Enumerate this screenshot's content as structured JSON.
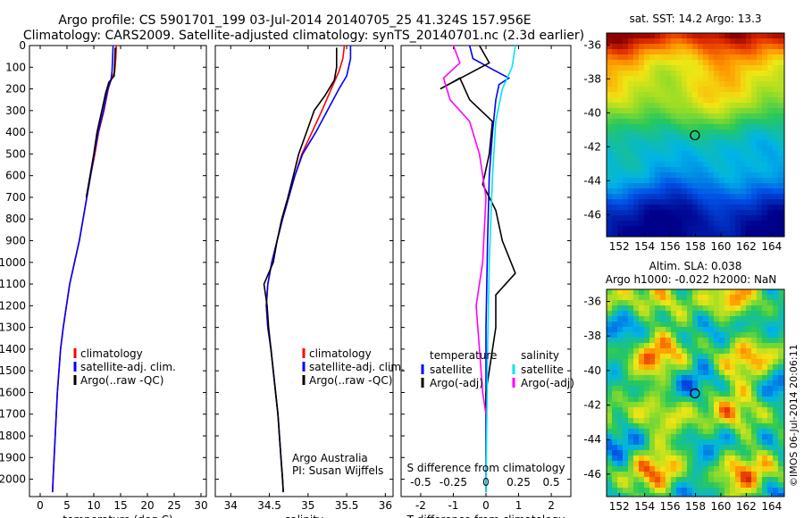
{
  "header": {
    "line1": "Argo profile: CS 5901701_199 03-Jul-2014 20140705_25 41.324S 157.956E",
    "line2": "Climatology: CARS2009. Satellite-adjusted climatology: synTS_20140701.nc (2.3d earlier)"
  },
  "colors": {
    "climatology": "#ff0000",
    "satellite": "#0000ff",
    "argo": "#000000",
    "satellite_s": "#00e5ee",
    "argo_s": "#ff00ff"
  },
  "chart_data": [
    {
      "type": "line",
      "id": "temperature",
      "xlabel": "temperature (deg C)",
      "ylabel": "",
      "xlim": [
        -2,
        31
      ],
      "ylim": [
        2080,
        0
      ],
      "xticks": [
        0,
        5,
        10,
        15,
        20,
        25,
        30
      ],
      "yticks": [
        0,
        100,
        200,
        300,
        400,
        500,
        600,
        700,
        800,
        900,
        1000,
        1100,
        1200,
        1300,
        1400,
        1500,
        1600,
        1700,
        1800,
        1900,
        2000
      ],
      "legend": [
        "climatology",
        "satellite-adj. clim.",
        "Argo(..raw -QC)"
      ],
      "legend_position": "lower-center",
      "series": [
        {
          "name": "climatology",
          "points": [
            [
              14.2,
              0
            ],
            [
              14.1,
              60
            ],
            [
              13.9,
              120
            ],
            [
              13.2,
              160
            ],
            [
              12.7,
              200
            ],
            [
              11.9,
              300
            ],
            [
              10.9,
              400
            ],
            [
              10.2,
              500
            ],
            [
              9.4,
              600
            ],
            [
              8.7,
              700
            ],
            [
              8.0,
              800
            ],
            [
              7.3,
              900
            ],
            [
              6.4,
              1000
            ],
            [
              5.5,
              1100
            ],
            [
              4.9,
              1200
            ],
            [
              4.3,
              1300
            ],
            [
              3.8,
              1400
            ],
            [
              3.5,
              1500
            ],
            [
              3.2,
              1600
            ],
            [
              3.0,
              1700
            ],
            [
              2.8,
              1800
            ],
            [
              2.6,
              1900
            ],
            [
              2.4,
              2000
            ],
            [
              2.3,
              2060
            ]
          ]
        },
        {
          "name": "satellite-adj. clim.",
          "points": [
            [
              13.6,
              0
            ],
            [
              13.5,
              60
            ],
            [
              13.4,
              120
            ],
            [
              13.2,
              160
            ],
            [
              12.6,
              200
            ],
            [
              11.8,
              300
            ],
            [
              10.8,
              400
            ],
            [
              10.1,
              500
            ],
            [
              9.4,
              600
            ],
            [
              8.7,
              700
            ],
            [
              8.0,
              800
            ],
            [
              7.3,
              900
            ],
            [
              6.4,
              1000
            ],
            [
              5.5,
              1100
            ],
            [
              4.9,
              1200
            ],
            [
              4.3,
              1300
            ],
            [
              3.8,
              1400
            ],
            [
              3.5,
              1500
            ],
            [
              3.2,
              1600
            ],
            [
              3.0,
              1700
            ],
            [
              2.8,
              1800
            ],
            [
              2.6,
              1900
            ],
            [
              2.4,
              2000
            ],
            [
              2.3,
              2060
            ]
          ]
        },
        {
          "name": "Argo(..raw -QC)",
          "points": [
            [
              14.0,
              10
            ],
            [
              13.9,
              80
            ],
            [
              13.8,
              140
            ],
            [
              12.8,
              170
            ],
            [
              12.2,
              220
            ],
            [
              11.5,
              300
            ],
            [
              10.6,
              400
            ],
            [
              10.0,
              500
            ],
            [
              9.3,
              600
            ],
            [
              8.6,
              700
            ]
          ]
        }
      ]
    },
    {
      "type": "line",
      "id": "salinity",
      "xlabel": "salinity",
      "ylabel": "",
      "xlim": [
        33.8,
        36.1
      ],
      "ylim": [
        2080,
        0
      ],
      "xticks": [
        34,
        34.5,
        35,
        35.5,
        36
      ],
      "xticklabels": [
        "34",
        "34.5",
        "35",
        "35.5",
        "36"
      ],
      "legend": [
        "climatology",
        "satellite-adj. clim.",
        "Argo(..raw -QC)"
      ],
      "legend_position": "lower-right",
      "annotation": [
        "Argo Australia",
        "PI: Susan Wijffels"
      ],
      "series": [
        {
          "name": "climatology",
          "points": [
            [
              35.47,
              0
            ],
            [
              35.45,
              60
            ],
            [
              35.4,
              120
            ],
            [
              35.3,
              200
            ],
            [
              35.18,
              300
            ],
            [
              35.05,
              400
            ],
            [
              34.92,
              500
            ],
            [
              34.83,
              600
            ],
            [
              34.75,
              700
            ],
            [
              34.67,
              800
            ],
            [
              34.6,
              900
            ],
            [
              34.53,
              1000
            ],
            [
              34.48,
              1100
            ],
            [
              34.46,
              1200
            ],
            [
              34.48,
              1300
            ],
            [
              34.52,
              1400
            ],
            [
              34.55,
              1500
            ],
            [
              34.58,
              1600
            ],
            [
              34.61,
              1700
            ],
            [
              34.63,
              1800
            ],
            [
              34.65,
              1900
            ],
            [
              34.67,
              2000
            ],
            [
              34.68,
              2060
            ]
          ]
        },
        {
          "name": "satellite-adj. clim.",
          "points": [
            [
              35.55,
              0
            ],
            [
              35.55,
              60
            ],
            [
              35.5,
              140
            ],
            [
              35.4,
              200
            ],
            [
              35.25,
              300
            ],
            [
              35.1,
              400
            ],
            [
              34.93,
              500
            ],
            [
              34.83,
              600
            ],
            [
              34.75,
              700
            ],
            [
              34.67,
              800
            ],
            [
              34.6,
              900
            ],
            [
              34.53,
              1000
            ],
            [
              34.48,
              1100
            ],
            [
              34.46,
              1200
            ],
            [
              34.48,
              1300
            ],
            [
              34.52,
              1400
            ],
            [
              34.55,
              1500
            ],
            [
              34.58,
              1600
            ],
            [
              34.61,
              1700
            ],
            [
              34.63,
              1800
            ],
            [
              34.65,
              1900
            ],
            [
              34.67,
              2000
            ],
            [
              34.68,
              2060
            ]
          ]
        },
        {
          "name": "Argo(..raw -QC)",
          "points": [
            [
              35.37,
              10
            ],
            [
              35.37,
              100
            ],
            [
              35.34,
              160
            ],
            [
              35.22,
              230
            ],
            [
              35.08,
              300
            ],
            [
              34.98,
              400
            ],
            [
              34.88,
              500
            ],
            [
              34.81,
              600
            ],
            [
              34.74,
              700
            ],
            [
              34.66,
              800
            ],
            [
              34.6,
              900
            ],
            [
              34.55,
              1000
            ],
            [
              34.43,
              1100
            ],
            [
              34.47,
              1200
            ],
            [
              34.49,
              1300
            ],
            [
              34.52,
              1400
            ],
            [
              34.55,
              1500
            ],
            [
              34.58,
              1600
            ],
            [
              34.61,
              1700
            ],
            [
              34.63,
              1800
            ],
            [
              34.65,
              1900
            ],
            [
              34.67,
              2000
            ],
            [
              34.68,
              2060
            ]
          ]
        }
      ]
    },
    {
      "type": "line",
      "id": "difference",
      "xlabel": "T difference from climatology",
      "xlabel2": "S difference from climatology",
      "xlim": [
        -2.6,
        2.6
      ],
      "ylim": [
        2080,
        0
      ],
      "xticks": [
        -2,
        -1,
        0,
        1,
        2
      ],
      "xticklabels": [
        "-2",
        "-1",
        "0",
        "1",
        "2"
      ],
      "s_ticklabels": [
        "-0.5",
        "-0.25",
        "0",
        "0.25",
        "0.5"
      ],
      "legend_headers": [
        "temperature",
        "salinity"
      ],
      "legend": [
        "satellite",
        "Argo(-adj)",
        "satellite",
        "Argo(-adj)"
      ],
      "legend_position": "lower-center",
      "series": [
        {
          "name": "satellite",
          "points": [
            [
              -0.5,
              0
            ],
            [
              -0.4,
              60
            ],
            [
              0.2,
              110
            ],
            [
              0.7,
              150
            ],
            [
              0.4,
              180
            ],
            [
              0.3,
              250
            ],
            [
              0.2,
              400
            ],
            [
              0.1,
              600
            ],
            [
              0.05,
              900
            ],
            [
              0.0,
              1300
            ],
            [
              0.0,
              2060
            ]
          ]
        },
        {
          "name": "Argo(-adj)",
          "points": [
            [
              -0.2,
              0
            ],
            [
              0.1,
              80
            ],
            [
              -1.4,
              200
            ],
            [
              -0.8,
              150
            ],
            [
              -0.5,
              250
            ],
            [
              0.2,
              350
            ],
            [
              0.1,
              500
            ],
            [
              -0.1,
              640
            ],
            [
              0.3,
              760
            ],
            [
              0.5,
              900
            ],
            [
              0.9,
              1050
            ],
            [
              0.3,
              1150
            ],
            [
              0.3,
              1300
            ],
            [
              0.0,
              1600
            ],
            [
              0.0,
              1700
            ]
          ]
        },
        {
          "name": "satellite",
          "points": [
            [
              0.9,
              0
            ],
            [
              0.8,
              100
            ],
            [
              0.5,
              200
            ],
            [
              0.3,
              350
            ],
            [
              0.2,
              600
            ],
            [
              0.1,
              1000
            ],
            [
              0.05,
              1400
            ],
            [
              0.0,
              2060
            ]
          ]
        },
        {
          "name": "Argo(-adj)",
          "points": [
            [
              -1.0,
              0
            ],
            [
              -0.8,
              80
            ],
            [
              -1.3,
              150
            ],
            [
              -1.1,
              250
            ],
            [
              -0.5,
              350
            ],
            [
              -0.2,
              500
            ],
            [
              0.0,
              700
            ],
            [
              -0.1,
              1000
            ],
            [
              -0.3,
              1200
            ],
            [
              -0.2,
              1400
            ],
            [
              -0.1,
              1600
            ],
            [
              0.0,
              1700
            ]
          ]
        }
      ]
    },
    {
      "type": "heatmap",
      "id": "sst-map",
      "title": "sat. SST: 14.2  Argo: 13.3",
      "xticklabels": [
        "152",
        "154",
        "156",
        "158",
        "160",
        "162",
        "164"
      ],
      "yticklabels": [
        "-36",
        "-38",
        "-40",
        "-42",
        "-44",
        "-46"
      ],
      "xlim": [
        151,
        165
      ],
      "ylim": [
        -47.3,
        -35.3
      ],
      "marker": {
        "lon": 157.956,
        "lat": -41.324
      }
    },
    {
      "type": "heatmap",
      "id": "sla-map",
      "title": "Altim. SLA: 0.038",
      "subtitle": "Argo h1000: -0.022  h2000: NaN",
      "xticklabels": [
        "152",
        "154",
        "156",
        "158",
        "160",
        "162",
        "164"
      ],
      "yticklabels": [
        "-36",
        "-38",
        "-40",
        "-42",
        "-44",
        "-46"
      ],
      "xlim": [
        151,
        165
      ],
      "ylim": [
        -47.3,
        -35.3
      ],
      "marker": {
        "lon": 157.956,
        "lat": -41.324
      }
    }
  ],
  "footer": {
    "stamp": "©IMOS 06-Jul-2014 20:06:11"
  }
}
